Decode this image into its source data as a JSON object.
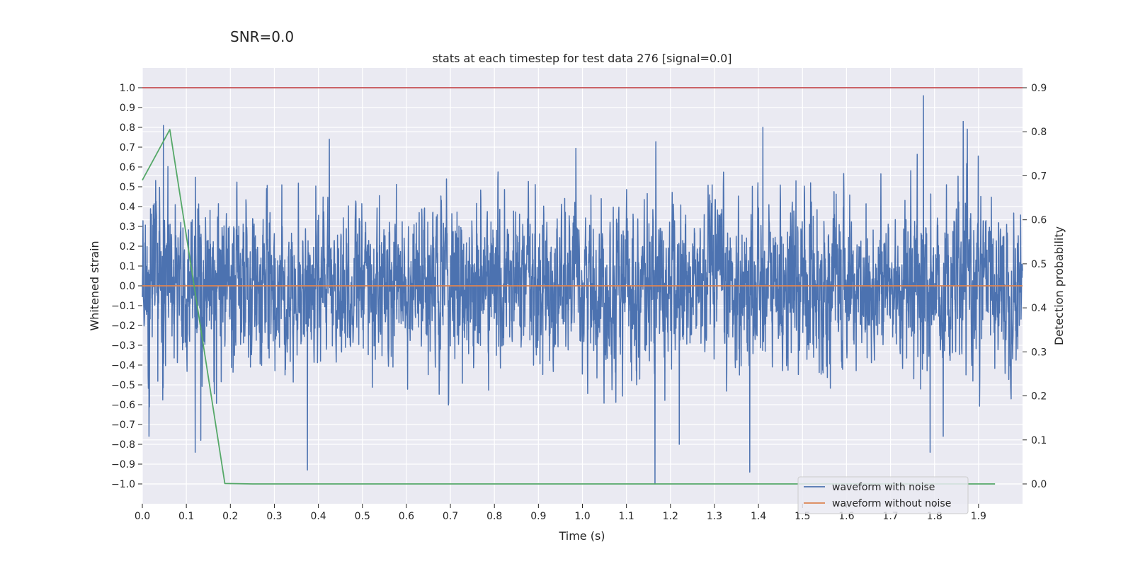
{
  "snr_label": "SNR=0.0",
  "chart_data": {
    "type": "line",
    "title": "stats at each timestep for test data 276 [signal=0.0]",
    "xlabel": "Time (s)",
    "ylabel_left": "Whitened strain",
    "ylabel_right": "Detection probability",
    "xlim": [
      0.0,
      2.0
    ],
    "ylim_left": [
      -1.1,
      1.1
    ],
    "ylim_right": [
      -0.045,
      0.945
    ],
    "xticks": [
      0.0,
      0.1,
      0.2,
      0.3,
      0.4,
      0.5,
      0.6,
      0.7,
      0.8,
      0.9,
      1.0,
      1.1,
      1.2,
      1.3,
      1.4,
      1.5,
      1.6,
      1.7,
      1.8,
      1.9
    ],
    "xtick_labels": [
      "0.0",
      "0.1",
      "0.2",
      "0.3",
      "0.4",
      "0.5",
      "0.6",
      "0.7",
      "0.8",
      "0.9",
      "1.0",
      "1.1",
      "1.2",
      "1.3",
      "1.4",
      "1.5",
      "1.6",
      "1.7",
      "1.8",
      "1.9"
    ],
    "yticks_left": [
      1.0,
      0.9,
      0.8,
      0.7,
      0.6,
      0.5,
      0.4,
      0.3,
      0.2,
      0.1,
      0.0,
      -0.1,
      -0.2,
      -0.3,
      -0.4,
      -0.5,
      -0.6,
      -0.7,
      -0.8,
      -0.9,
      -1.0
    ],
    "ytick_labels_left": [
      "1.0",
      "0.9",
      "0.8",
      "0.7",
      "0.6",
      "0.5",
      "0.4",
      "0.3",
      "0.2",
      "0.1",
      "0.0",
      "−0.1",
      "−0.2",
      "−0.3",
      "−0.4",
      "−0.5",
      "−0.6",
      "−0.7",
      "−0.8",
      "−0.9",
      "−1.0"
    ],
    "yticks_right": [
      0.9,
      0.8,
      0.7,
      0.6,
      0.5,
      0.4,
      0.3,
      0.2,
      0.1,
      0.0
    ],
    "ytick_labels_right": [
      "0.9",
      "0.8",
      "0.7",
      "0.6",
      "0.5",
      "0.4",
      "0.3",
      "0.2",
      "0.1",
      "0.0"
    ],
    "grid": true,
    "legend": {
      "placement": "lower-right",
      "entries": [
        {
          "label": "waveform with noise",
          "color": "#4c72b0"
        },
        {
          "label": "waveform without noise",
          "color": "#dd8452"
        }
      ]
    },
    "series": [
      {
        "name": "waveform with noise",
        "axis": "left",
        "color": "#4c72b0",
        "kind": "noise",
        "x_range": [
          0.0,
          2.0
        ],
        "n_points": 4096,
        "y_range_observed": [
          -1.0,
          0.96
        ],
        "spikes": [
          {
            "x": 0.048,
            "y": 0.81
          },
          {
            "x": 0.015,
            "y": -0.76
          },
          {
            "x": 0.12,
            "y": -0.84
          },
          {
            "x": 0.133,
            "y": -0.78
          },
          {
            "x": 0.375,
            "y": -0.93
          },
          {
            "x": 0.425,
            "y": 0.74
          },
          {
            "x": 1.165,
            "y": -1.0
          },
          {
            "x": 1.22,
            "y": -0.8
          },
          {
            "x": 1.38,
            "y": -0.94
          },
          {
            "x": 1.41,
            "y": 0.8
          },
          {
            "x": 1.775,
            "y": 0.96
          },
          {
            "x": 1.79,
            "y": -0.84
          },
          {
            "x": 1.82,
            "y": -0.76
          },
          {
            "x": 1.865,
            "y": 0.83
          }
        ]
      },
      {
        "name": "waveform without noise",
        "axis": "left",
        "color": "#dd8452",
        "x": [
          0.0,
          2.0
        ],
        "y": [
          0.0,
          0.0
        ]
      },
      {
        "name": "detection probability",
        "axis": "right",
        "color": "#55a868",
        "x": [
          0.0,
          0.0625,
          0.1875,
          0.25,
          1.9375
        ],
        "y": [
          0.69,
          0.805,
          0.001,
          0.0,
          0.0
        ]
      },
      {
        "name": "threshold",
        "axis": "right",
        "color": "#c44e52",
        "x": [
          0.0,
          2.0
        ],
        "y": [
          0.9,
          0.9
        ]
      }
    ]
  }
}
